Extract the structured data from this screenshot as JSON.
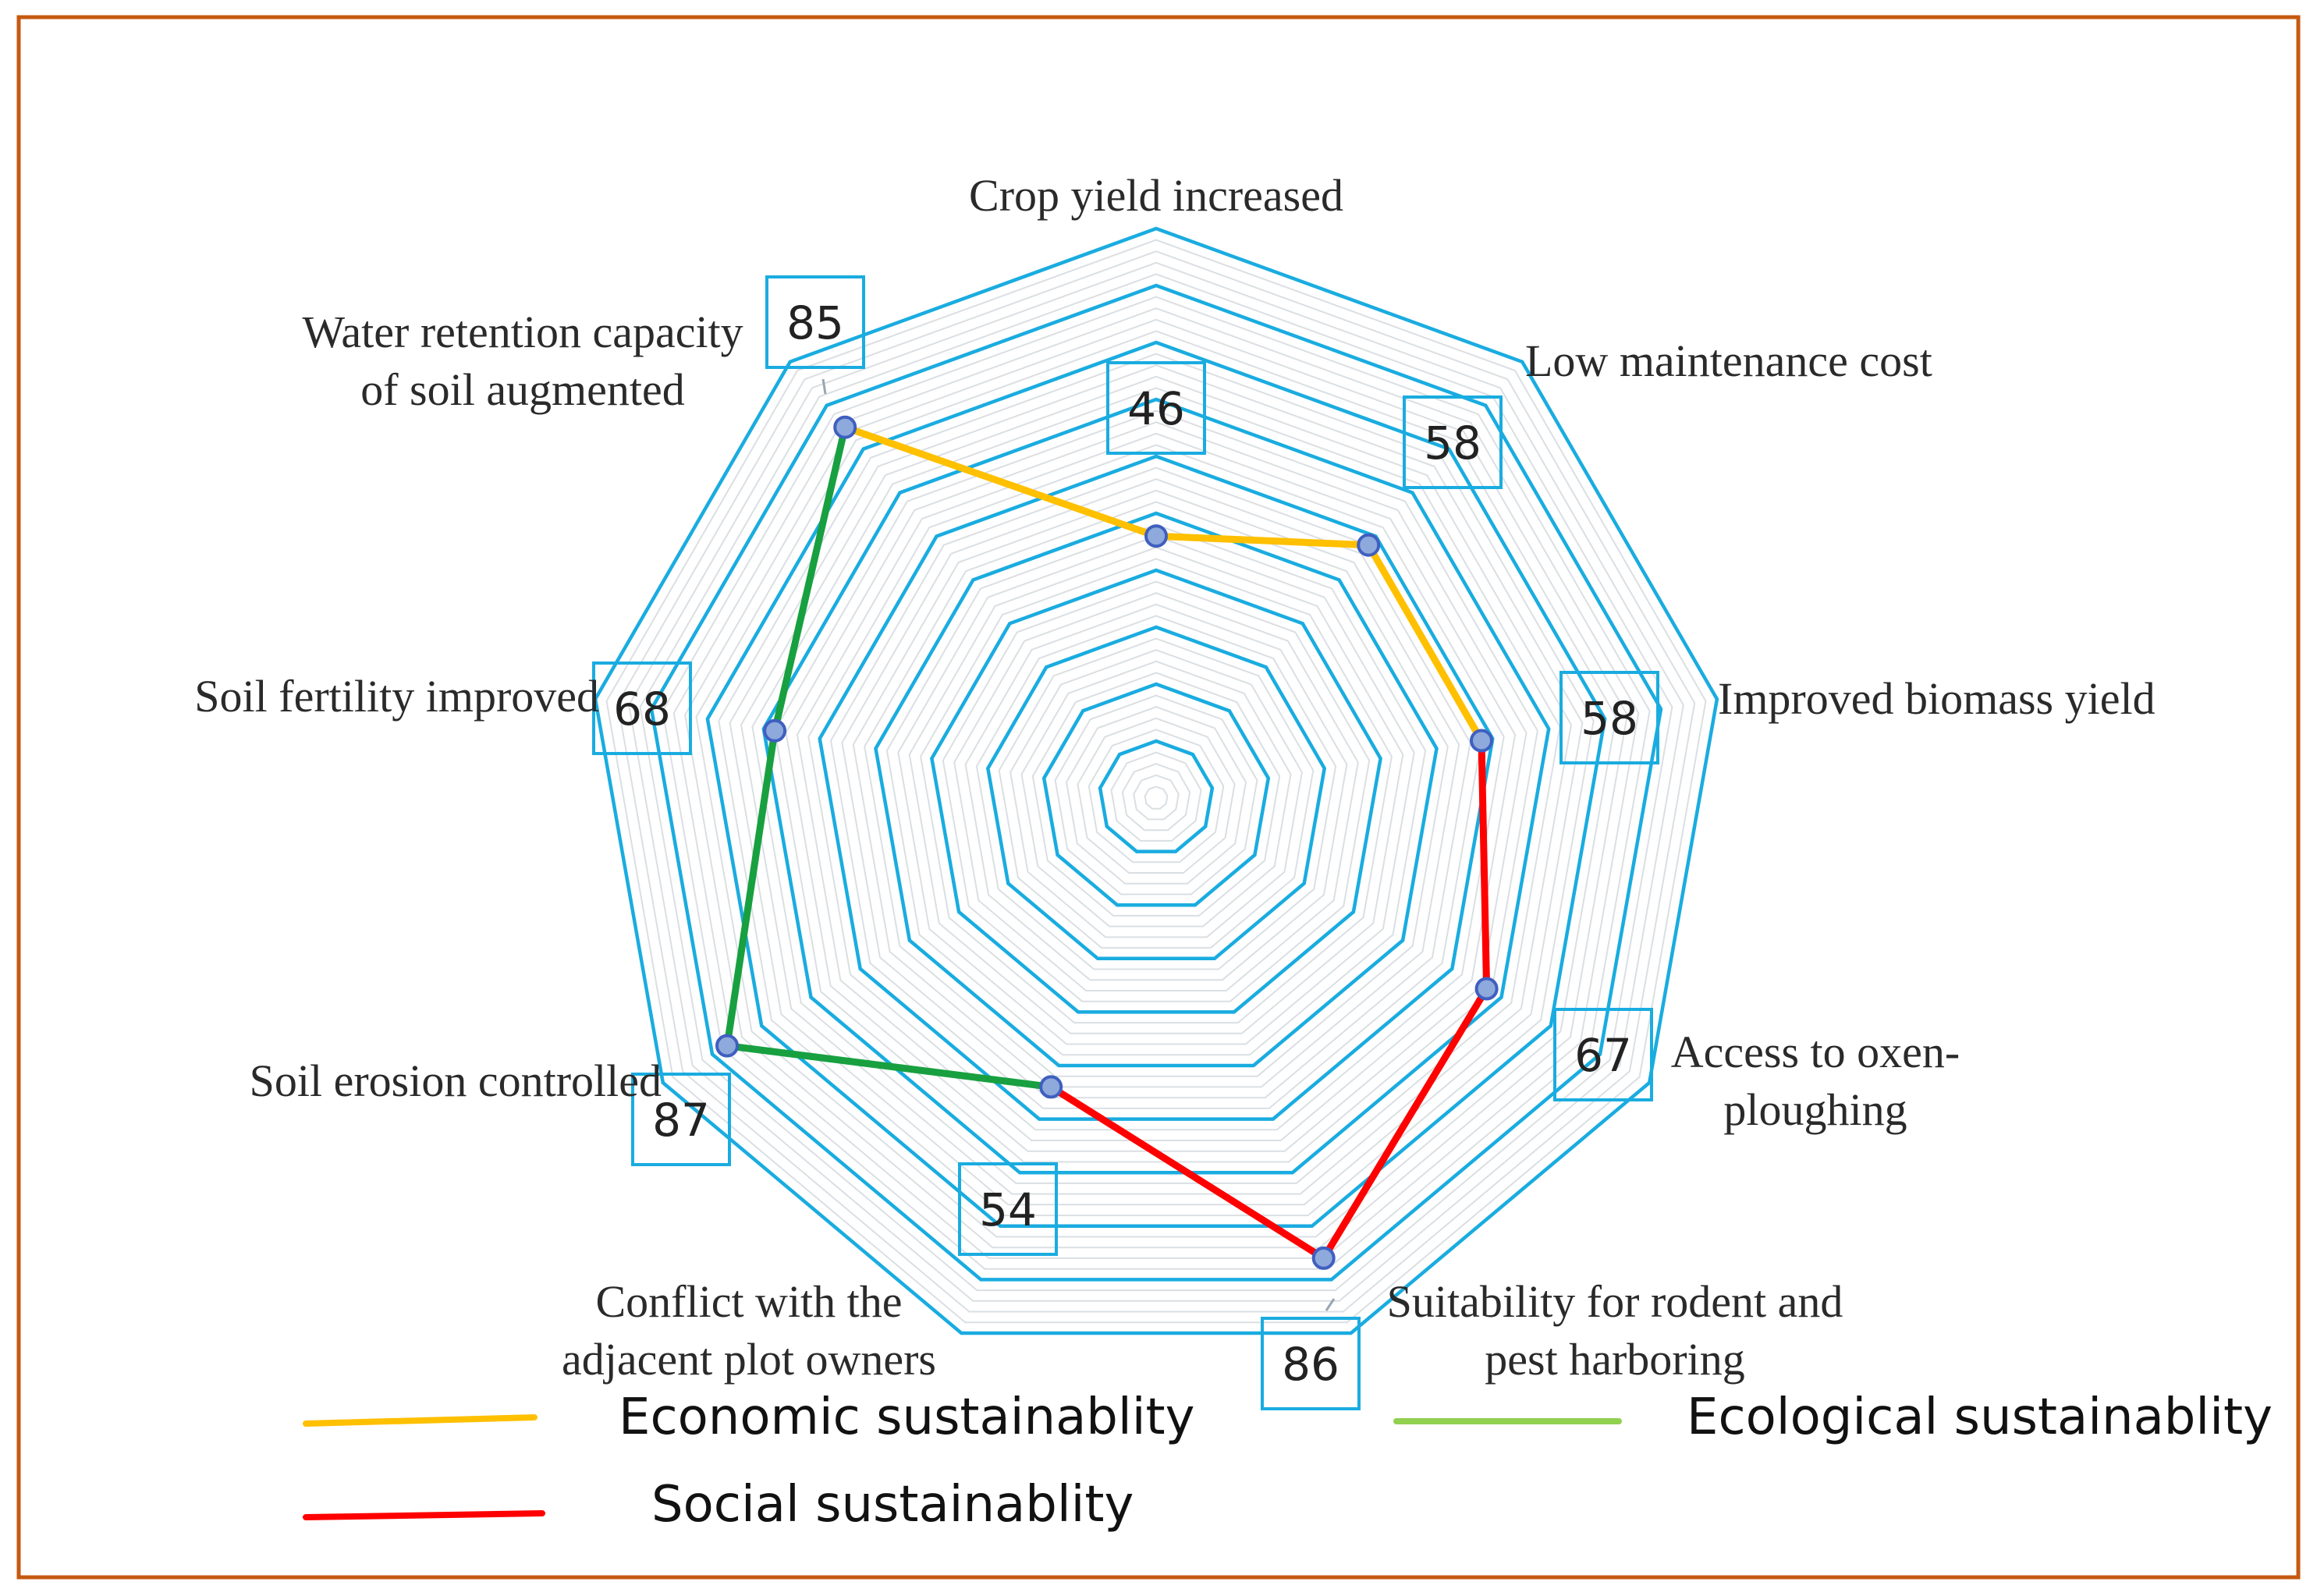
{
  "chart_data": {
    "type": "radar",
    "title": "",
    "scale": {
      "min": 0,
      "max": 100,
      "rings": 10
    },
    "axes": [
      "Crop yield increased",
      "Low  maintenance cost",
      "Improved biomass yield",
      "Access to oxen-ploughing",
      "Suitability for rodent and pest harboring",
      "Conflict with the adjacent plot owners",
      "Soil erosion controlled",
      "Soil fertility improved",
      "Water retention capacity of soil augmented"
    ],
    "axis_label_lines": [
      [
        "Crop yield increased"
      ],
      [
        "Low  maintenance cost"
      ],
      [
        "Improved biomass yield"
      ],
      [
        "Access to oxen-",
        "ploughing"
      ],
      [
        "Suitability for rodent and",
        "pest harboring"
      ],
      [
        "Conflict with the",
        "adjacent plot owners"
      ],
      [
        "Soil erosion controlled"
      ],
      [
        "Soil fertility improved"
      ],
      [
        "Water retention capacity",
        "of soil augmented"
      ]
    ],
    "values": [
      46,
      58,
      58,
      67,
      86,
      54,
      87,
      68,
      85
    ],
    "series": [
      {
        "name": "Economic sustainablity",
        "color": "#FFC000",
        "axis_indices": [
          8,
          0,
          1,
          2
        ]
      },
      {
        "name": "Social sustainablity",
        "color": "#FF0000",
        "axis_indices": [
          2,
          3,
          4,
          5
        ]
      },
      {
        "name": "Ecological sustainablity",
        "color": "#18A040",
        "legend_color": "#92D050",
        "axis_indices": [
          5,
          6,
          7,
          8
        ]
      }
    ],
    "legend": [
      {
        "name": "Economic sustainablity",
        "color": "#FFC000"
      },
      {
        "name": "Ecological sustainablity",
        "color": "#92D050"
      },
      {
        "name": "Social sustainablity",
        "color": "#FF0000"
      }
    ],
    "grid_color": "#1AACE0",
    "frame_color": "#C55A11"
  }
}
